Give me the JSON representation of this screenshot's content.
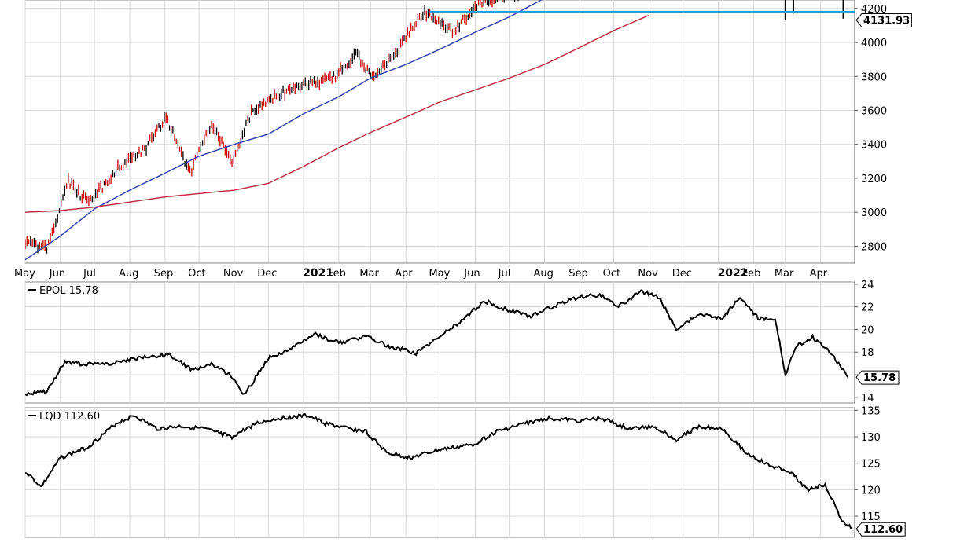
{
  "chart_data": [
    {
      "type": "line",
      "title": "",
      "ylim": [
        2700,
        4250
      ],
      "grid": true,
      "y_ticks": [
        2800,
        3000,
        3200,
        3400,
        3600,
        3800,
        4000,
        4200
      ],
      "x_labels": [
        "May",
        "Jun",
        "Jul",
        "Aug",
        "Sep",
        "Oct",
        "Nov",
        "Dec",
        "2021",
        "Feb",
        "Mar",
        "Apr",
        "May",
        "Jun",
        "Jul",
        "Aug",
        "Sep",
        "Oct",
        "Nov",
        "Dec",
        "2022",
        "Feb",
        "Mar",
        "Apr"
      ],
      "x_bold": [
        "2021",
        "2022"
      ],
      "last_value_label": "4131.93",
      "last_value": 4131.93,
      "horizontal_line": 4180,
      "series": [
        {
          "style": "price-bars",
          "color": "#000000",
          "down_color": "#cc0000",
          "x": [
            "2020-05-01",
            "2020-05-20",
            "2020-06-08",
            "2020-06-26",
            "2020-07-20",
            "2020-08-14",
            "2020-09-02",
            "2020-09-23",
            "2020-10-12",
            "2020-10-30",
            "2020-11-16",
            "2020-12-08",
            "2021-01-04",
            "2021-01-26",
            "2021-02-16",
            "2021-03-04",
            "2021-03-26",
            "2021-04-16",
            "2021-05-12",
            "2021-06-04",
            "2021-06-25",
            "2021-07-15"
          ],
          "y": [
            2830,
            2780,
            3180,
            3050,
            3250,
            3370,
            3560,
            3230,
            3530,
            3280,
            3590,
            3690,
            3760,
            3780,
            3930,
            3780,
            3970,
            4180,
            4060,
            4230,
            4280,
            4300
          ]
        },
        {
          "name": "",
          "style": "line",
          "color": "#3344aa",
          "x": [
            "2020-05-01",
            "2020-06-01",
            "2020-07-01",
            "2020-08-01",
            "2020-09-01",
            "2020-10-01",
            "2020-11-01",
            "2020-12-01",
            "2021-01-01",
            "2021-02-01",
            "2021-03-01",
            "2021-04-01",
            "2021-05-01",
            "2021-06-01",
            "2021-07-01",
            "2021-08-01"
          ],
          "y": [
            2720,
            2860,
            3020,
            3130,
            3230,
            3330,
            3400,
            3460,
            3580,
            3680,
            3790,
            3870,
            3960,
            4060,
            4150,
            4260
          ]
        },
        {
          "name": "",
          "style": "line",
          "color": "#bb3344",
          "x": [
            "2020-05-01",
            "2020-06-01",
            "2020-07-01",
            "2020-08-01",
            "2020-09-01",
            "2020-10-01",
            "2020-11-01",
            "2020-12-01",
            "2021-01-01",
            "2021-02-01",
            "2021-03-01",
            "2021-04-01",
            "2021-05-01",
            "2021-06-01",
            "2021-07-01",
            "2021-08-01",
            "2021-09-01",
            "2021-10-01",
            "2021-11-01"
          ],
          "y": [
            3000,
            3010,
            3030,
            3060,
            3090,
            3110,
            3130,
            3170,
            3270,
            3380,
            3470,
            3560,
            3650,
            3720,
            3790,
            3870,
            3970,
            4070,
            4160
          ]
        }
      ],
      "extra_marks": [
        {
          "x": "2022-03-01",
          "y_top": 4260,
          "y_bottom": 4130
        },
        {
          "x": "2022-03-08",
          "y_top": 4260,
          "y_bottom": 4170
        },
        {
          "x": "2022-04-21",
          "y_top": 4260,
          "y_bottom": 4140
        }
      ]
    },
    {
      "type": "line",
      "legend": "EPOL 15.78",
      "ylim": [
        13.5,
        24.2
      ],
      "grid": true,
      "y_ticks": [
        14,
        16,
        18,
        20,
        22,
        24
      ],
      "last_value_label": "15.78",
      "last_value": 15.78,
      "series": [
        {
          "name": "EPOL",
          "color": "#000000",
          "x": [
            "2020-05-01",
            "2020-05-20",
            "2020-06-05",
            "2020-06-20",
            "2020-07-15",
            "2020-08-10",
            "2020-09-05",
            "2020-09-25",
            "2020-10-12",
            "2020-10-30",
            "2020-11-10",
            "2020-12-01",
            "2020-12-20",
            "2021-01-10",
            "2021-02-01",
            "2021-02-25",
            "2021-03-15",
            "2021-04-10",
            "2021-05-01",
            "2021-05-20",
            "2021-06-10",
            "2021-06-30",
            "2021-07-20",
            "2021-08-10",
            "2021-08-31",
            "2021-09-20",
            "2021-10-05",
            "2021-10-25",
            "2021-11-10",
            "2021-11-25",
            "2021-12-15",
            "2022-01-05",
            "2022-01-20",
            "2022-02-05",
            "2022-02-20",
            "2022-03-01",
            "2022-03-10",
            "2022-03-25",
            "2022-04-10",
            "2022-04-25"
          ],
          "y": [
            14.3,
            14.5,
            17.2,
            16.9,
            17.0,
            17.5,
            17.8,
            16.4,
            17.0,
            15.8,
            14.2,
            17.5,
            18.2,
            19.6,
            18.8,
            19.4,
            18.6,
            17.9,
            19.4,
            20.8,
            22.5,
            21.7,
            21.2,
            22.1,
            22.9,
            23.0,
            22.0,
            23.4,
            22.8,
            20.0,
            21.3,
            21.0,
            22.9,
            21.0,
            21.0,
            16.0,
            18.5,
            19.3,
            18.0,
            15.78
          ]
        }
      ]
    },
    {
      "type": "line",
      "legend": "LQD 112.60",
      "ylim": [
        111,
        135.5
      ],
      "grid": true,
      "y_ticks": [
        115,
        120,
        125,
        130,
        135
      ],
      "last_value_label": "112.60",
      "last_value": 112.6,
      "series": [
        {
          "name": "LQD",
          "color": "#000000",
          "x": [
            "2020-05-01",
            "2020-05-15",
            "2020-06-01",
            "2020-06-25",
            "2020-07-20",
            "2020-08-05",
            "2020-08-25",
            "2020-09-15",
            "2020-10-05",
            "2020-10-30",
            "2020-11-20",
            "2020-12-10",
            "2021-01-05",
            "2021-01-20",
            "2021-02-10",
            "2021-02-25",
            "2021-03-15",
            "2021-04-05",
            "2021-04-30",
            "2021-05-30",
            "2021-06-20",
            "2021-07-15",
            "2021-08-05",
            "2021-08-31",
            "2021-09-20",
            "2021-10-15",
            "2021-11-05",
            "2021-11-25",
            "2021-12-15",
            "2022-01-05",
            "2022-01-25",
            "2022-02-15",
            "2022-03-05",
            "2022-03-20",
            "2022-04-05",
            "2022-04-20",
            "2022-04-29"
          ],
          "y": [
            123.5,
            120.5,
            126.0,
            128.0,
            132.5,
            134.0,
            131.5,
            132.0,
            131.5,
            130.0,
            132.5,
            133.5,
            134.0,
            132.5,
            131.5,
            131.0,
            127.0,
            126.0,
            127.5,
            128.5,
            131.0,
            132.5,
            133.5,
            133.0,
            133.5,
            131.5,
            132.0,
            129.5,
            132.0,
            131.5,
            127.0,
            124.5,
            123.5,
            120.0,
            121.0,
            114.0,
            112.6
          ]
        }
      ]
    }
  ]
}
